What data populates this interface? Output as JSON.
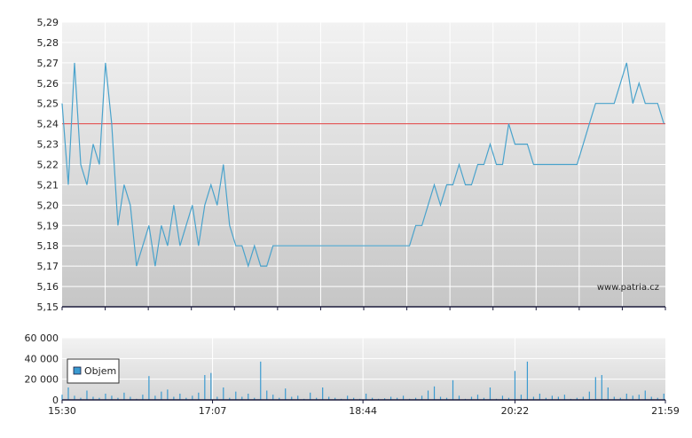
{
  "watermark": "www.patria.cz",
  "colors": {
    "line": "#4aa3cc",
    "reference": "#e03c3c",
    "volume": "#3a9ad0",
    "bg_top": "#f2f2f2",
    "bg_bottom": "#c6c6c6",
    "axis": "#1a1a3a"
  },
  "chart_data": [
    {
      "type": "line",
      "title": "",
      "xlabel": "",
      "ylabel": "",
      "ylim": [
        5.15,
        5.29
      ],
      "y_ticks": [
        "5,15",
        "5,16",
        "5,17",
        "5,18",
        "5,19",
        "5,20",
        "5,21",
        "5,22",
        "5,23",
        "5,24",
        "5,25",
        "5,26",
        "5,27",
        "5,28",
        "5,29"
      ],
      "reference_value": 5.24,
      "grid": true,
      "series": [
        {
          "x": [
            "15:30",
            "15:34",
            "15:38",
            "15:42",
            "15:46",
            "15:50",
            "15:54",
            "15:58",
            "16:02",
            "16:06",
            "16:10",
            "16:14",
            "16:18",
            "16:22",
            "16:26",
            "16:30",
            "16:34",
            "16:38",
            "16:42",
            "16:46",
            "16:50",
            "16:54",
            "16:58",
            "17:02",
            "17:06",
            "17:10",
            "17:14",
            "17:18",
            "17:22",
            "17:26",
            "17:30",
            "17:34",
            "17:38",
            "17:42",
            "17:46",
            "17:50",
            "17:54",
            "17:58",
            "18:02",
            "18:06",
            "18:10",
            "18:14",
            "18:18",
            "18:22",
            "18:26",
            "18:30",
            "18:34",
            "18:38",
            "18:42",
            "18:46",
            "18:50",
            "18:54",
            "18:58",
            "19:02",
            "19:06",
            "19:10",
            "19:14",
            "19:18",
            "19:22",
            "19:26",
            "19:30",
            "19:34",
            "19:38",
            "19:42",
            "19:46",
            "19:50",
            "19:54",
            "19:58",
            "20:02",
            "20:06",
            "20:10",
            "20:14",
            "20:18",
            "20:22",
            "20:26",
            "20:30",
            "20:34",
            "20:38",
            "20:42",
            "20:46",
            "20:50",
            "20:54",
            "20:58",
            "21:02",
            "21:06",
            "21:10",
            "21:14",
            "21:18",
            "21:22",
            "21:26",
            "21:30",
            "21:34",
            "21:38",
            "21:42",
            "21:46",
            "21:50",
            "21:54",
            "21:58"
          ],
          "values": [
            5.25,
            5.21,
            5.27,
            5.22,
            5.21,
            5.23,
            5.22,
            5.27,
            5.24,
            5.19,
            5.21,
            5.2,
            5.17,
            5.18,
            5.19,
            5.17,
            5.19,
            5.18,
            5.2,
            5.18,
            5.19,
            5.2,
            5.18,
            5.2,
            5.21,
            5.2,
            5.22,
            5.19,
            5.18,
            5.18,
            5.17,
            5.18,
            5.17,
            5.17,
            5.18,
            5.18,
            5.18,
            5.18,
            5.18,
            5.18,
            5.18,
            5.18,
            5.18,
            5.18,
            5.18,
            5.18,
            5.18,
            5.18,
            5.18,
            5.18,
            5.18,
            5.18,
            5.18,
            5.18,
            5.18,
            5.18,
            5.18,
            5.19,
            5.19,
            5.2,
            5.21,
            5.2,
            5.21,
            5.21,
            5.22,
            5.21,
            5.21,
            5.22,
            5.22,
            5.23,
            5.22,
            5.22,
            5.24,
            5.23,
            5.23,
            5.23,
            5.22,
            5.22,
            5.22,
            5.22,
            5.22,
            5.22,
            5.22,
            5.22,
            5.23,
            5.24,
            5.25,
            5.25,
            5.25,
            5.25,
            5.26,
            5.27,
            5.25,
            5.26,
            5.25,
            5.25,
            5.25,
            5.24
          ]
        }
      ]
    },
    {
      "type": "bar",
      "title": "",
      "xlabel": "",
      "ylabel": "",
      "ylim": [
        0,
        60000
      ],
      "y_ticks": [
        "0",
        "20 000",
        "40 000",
        "60 000"
      ],
      "x_ticks": [
        "15:30",
        "17:07",
        "18:44",
        "20:22",
        "21:59"
      ],
      "legend": {
        "label": "Objem",
        "placement": "top-left"
      },
      "series": [
        {
          "name": "Objem",
          "x": [
            "15:30",
            "15:34",
            "15:38",
            "15:42",
            "15:46",
            "15:50",
            "15:54",
            "15:58",
            "16:02",
            "16:06",
            "16:10",
            "16:14",
            "16:18",
            "16:22",
            "16:26",
            "16:30",
            "16:34",
            "16:38",
            "16:42",
            "16:46",
            "16:50",
            "16:54",
            "16:58",
            "17:02",
            "17:06",
            "17:10",
            "17:14",
            "17:18",
            "17:22",
            "17:26",
            "17:30",
            "17:34",
            "17:38",
            "17:42",
            "17:46",
            "17:50",
            "17:54",
            "17:58",
            "18:02",
            "18:06",
            "18:10",
            "18:14",
            "18:18",
            "18:22",
            "18:26",
            "18:30",
            "18:34",
            "18:38",
            "18:42",
            "18:46",
            "18:50",
            "18:54",
            "18:58",
            "19:02",
            "19:06",
            "19:10",
            "19:14",
            "19:18",
            "19:22",
            "19:26",
            "19:30",
            "19:34",
            "19:38",
            "19:42",
            "19:46",
            "19:50",
            "19:54",
            "19:58",
            "20:02",
            "20:06",
            "20:10",
            "20:14",
            "20:18",
            "20:22",
            "20:26",
            "20:30",
            "20:34",
            "20:38",
            "20:42",
            "20:46",
            "20:50",
            "20:54",
            "20:58",
            "21:02",
            "21:06",
            "21:10",
            "21:14",
            "21:18",
            "21:22",
            "21:26",
            "21:30",
            "21:34",
            "21:38",
            "21:42",
            "21:46",
            "21:50",
            "21:54",
            "21:58"
          ],
          "values": [
            5000,
            12000,
            4000,
            2000,
            9000,
            3000,
            2000,
            6000,
            4000,
            2000,
            7000,
            3000,
            1000,
            5000,
            23000,
            4000,
            8000,
            10000,
            3000,
            6000,
            2000,
            4000,
            7000,
            24000,
            26000,
            3000,
            12000,
            2000,
            8000,
            3000,
            6000,
            2000,
            37000,
            9000,
            5000,
            2000,
            11000,
            3000,
            4000,
            1000,
            7000,
            2000,
            12000,
            3000,
            2000,
            1000,
            4000,
            2000,
            1000,
            6000,
            2000,
            1000,
            1500,
            3000,
            2000,
            4000,
            1000,
            2000,
            4000,
            9000,
            13000,
            3000,
            2000,
            19000,
            4000,
            1000,
            3000,
            5000,
            2000,
            12000,
            1000,
            4000,
            2000,
            28000,
            5000,
            37000,
            3000,
            6000,
            2000,
            4000,
            3000,
            5000,
            1000,
            2000,
            3000,
            8000,
            22000,
            24000,
            12000,
            3000,
            2000,
            6000,
            4000,
            5000,
            9000,
            3000,
            2000,
            6000
          ]
        }
      ]
    }
  ]
}
